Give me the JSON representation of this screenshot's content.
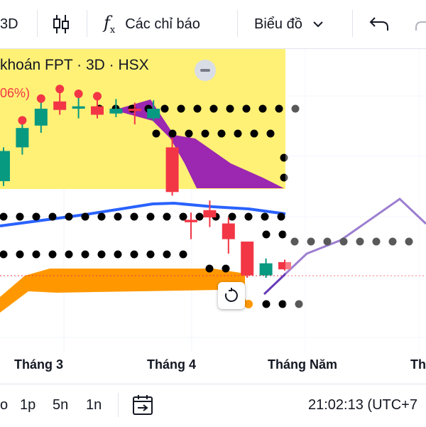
{
  "toolbar": {
    "interval_label": "3D",
    "indicators_label": "Các chỉ báo",
    "chart_type_label": "Biểu đồ",
    "icons": [
      "candles-icon",
      "fx-icon",
      "chevron-down-icon",
      "undo-icon",
      "redo-icon"
    ]
  },
  "legend": {
    "title": "khoán FPT · 3D · HSX",
    "change": "06%)"
  },
  "xaxis": {
    "ticks": [
      "Tháng 3",
      "Tháng 4",
      "Tháng Năm",
      "Th"
    ]
  },
  "bottombar": {
    "ranges": [
      "o",
      "1p",
      "5n",
      "1n"
    ],
    "clock": "21:02:13 (UTC+7"
  },
  "colors": {
    "up": "#089981",
    "down": "#f23645",
    "cloud_yellow": "#fff176",
    "cloud_purple": "#9c27b0",
    "orange_band": "#ff9800",
    "blue_line": "#2962ff",
    "projection_line": "#673ab7"
  },
  "chart_data": {
    "type": "candlestick",
    "symbol": "FPT",
    "interval": "3D",
    "exchange": "HSX",
    "candles": [
      {
        "dir": "up",
        "o": 10,
        "c": 35,
        "h": 38,
        "l": 6
      },
      {
        "dir": "up",
        "o": 38,
        "c": 54,
        "h": 58,
        "l": 32
      },
      {
        "dir": "up",
        "o": 56,
        "c": 70,
        "h": 76,
        "l": 50
      },
      {
        "dir": "down",
        "o": 76,
        "c": 69,
        "h": 84,
        "l": 65
      },
      {
        "dir": "up",
        "o": 70,
        "c": 72,
        "h": 80,
        "l": 62
      },
      {
        "dir": "down",
        "o": 72,
        "c": 65,
        "h": 78,
        "l": 62
      },
      {
        "dir": "up",
        "o": 66,
        "c": 70,
        "h": 78,
        "l": 63
      },
      {
        "dir": "down",
        "o": 70,
        "c": 68,
        "h": 75,
        "l": 57
      },
      {
        "dir": "up",
        "o": 62,
        "c": 70,
        "h": 77,
        "l": 60
      },
      {
        "dir": "down",
        "o": 38,
        "c": 1,
        "h": 46,
        "l": -2
      },
      {
        "dir": "down",
        "o": -22,
        "c": -24,
        "h": -16,
        "l": -38
      },
      {
        "dir": "down",
        "o": -14,
        "c": -20,
        "h": -6,
        "l": -28
      },
      {
        "dir": "down",
        "o": -25,
        "c": -38,
        "h": -20,
        "l": -50
      },
      {
        "dir": "down",
        "o": -40,
        "c": -68,
        "h": -40,
        "l": -70
      },
      {
        "dir": "up",
        "o": -68,
        "c": -58,
        "h": -54,
        "l": -70
      },
      {
        "dir": "down",
        "o": -57,
        "c": -63,
        "h": -55,
        "l": -64
      }
    ],
    "reference_price": -62,
    "grid": true
  }
}
